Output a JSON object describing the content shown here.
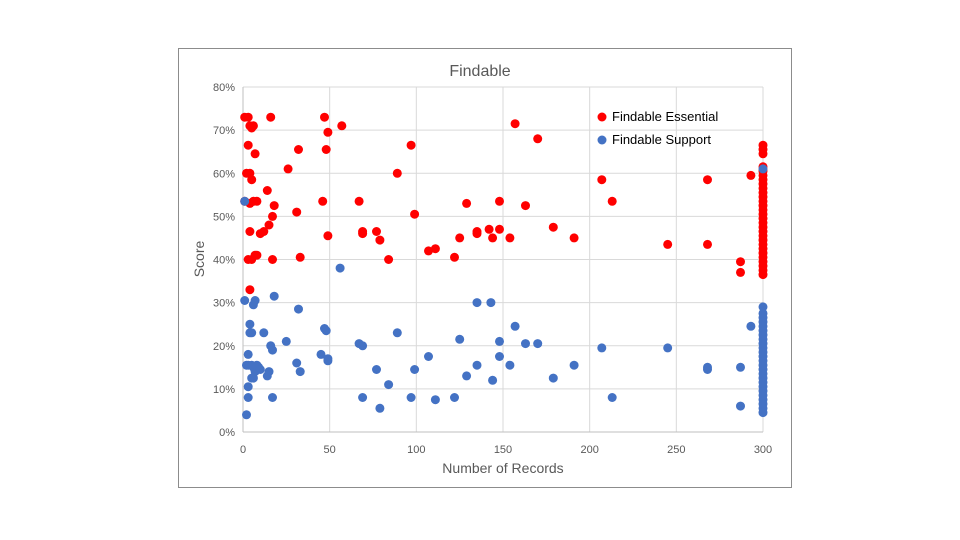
{
  "chart_data": {
    "type": "scatter",
    "title": "Findable",
    "xlabel": "Number of Records",
    "ylabel": "Score",
    "xlim": [
      0,
      300
    ],
    "ylim": [
      0,
      0.8
    ],
    "x_ticks": [
      "0",
      "50",
      "100",
      "150",
      "200",
      "250",
      "300"
    ],
    "y_ticks": [
      "0%",
      "10%",
      "20%",
      "30%",
      "40%",
      "50%",
      "60%",
      "70%",
      "80%"
    ],
    "grid": true,
    "legend_position": "top-right",
    "series": [
      {
        "name": "Findable Essential",
        "color": "#ff0000",
        "points": [
          [
            1,
            0.73
          ],
          [
            3,
            0.73
          ],
          [
            4,
            0.71
          ],
          [
            5,
            0.705
          ],
          [
            6,
            0.71
          ],
          [
            3,
            0.665
          ],
          [
            7,
            0.645
          ],
          [
            2,
            0.6
          ],
          [
            4,
            0.6
          ],
          [
            5,
            0.585
          ],
          [
            6,
            0.535
          ],
          [
            8,
            0.535
          ],
          [
            1,
            0.535
          ],
          [
            14,
            0.56
          ],
          [
            17,
            0.5
          ],
          [
            18,
            0.525
          ],
          [
            4,
            0.53
          ],
          [
            10,
            0.46
          ],
          [
            12,
            0.465
          ],
          [
            15,
            0.48
          ],
          [
            4,
            0.465
          ],
          [
            3,
            0.4
          ],
          [
            5,
            0.4
          ],
          [
            7,
            0.41
          ],
          [
            8,
            0.41
          ],
          [
            17,
            0.4
          ],
          [
            4,
            0.33
          ],
          [
            16,
            0.73
          ],
          [
            26,
            0.61
          ],
          [
            32,
            0.655
          ],
          [
            31,
            0.51
          ],
          [
            33,
            0.405
          ],
          [
            47,
            0.73
          ],
          [
            49,
            0.695
          ],
          [
            48,
            0.655
          ],
          [
            57,
            0.71
          ],
          [
            46,
            0.535
          ],
          [
            49,
            0.455
          ],
          [
            67,
            0.535
          ],
          [
            69,
            0.46
          ],
          [
            69,
            0.465
          ],
          [
            77,
            0.465
          ],
          [
            79,
            0.445
          ],
          [
            84,
            0.4
          ],
          [
            89,
            0.6
          ],
          [
            97,
            0.665
          ],
          [
            99,
            0.505
          ],
          [
            107,
            0.42
          ],
          [
            111,
            0.425
          ],
          [
            122,
            0.405
          ],
          [
            125,
            0.45
          ],
          [
            129,
            0.53
          ],
          [
            135,
            0.46
          ],
          [
            135,
            0.465
          ],
          [
            142,
            0.47
          ],
          [
            144,
            0.45
          ],
          [
            148,
            0.535
          ],
          [
            148,
            0.47
          ],
          [
            154,
            0.45
          ],
          [
            157,
            0.715
          ],
          [
            163,
            0.525
          ],
          [
            170,
            0.68
          ],
          [
            179,
            0.475
          ],
          [
            191,
            0.45
          ],
          [
            207,
            0.585
          ],
          [
            213,
            0.535
          ],
          [
            245,
            0.435
          ],
          [
            268,
            0.585
          ],
          [
            268,
            0.435
          ],
          [
            287,
            0.395
          ],
          [
            287,
            0.37
          ],
          [
            293,
            0.595
          ],
          [
            300,
            0.665
          ],
          [
            300,
            0.655
          ],
          [
            300,
            0.645
          ],
          [
            300,
            0.615
          ],
          [
            300,
            0.605
          ],
          [
            300,
            0.595
          ],
          [
            300,
            0.585
          ],
          [
            300,
            0.575
          ],
          [
            300,
            0.565
          ],
          [
            300,
            0.555
          ],
          [
            300,
            0.545
          ],
          [
            300,
            0.535
          ],
          [
            300,
            0.525
          ],
          [
            300,
            0.515
          ],
          [
            300,
            0.505
          ],
          [
            300,
            0.495
          ],
          [
            300,
            0.485
          ],
          [
            300,
            0.475
          ],
          [
            300,
            0.465
          ],
          [
            300,
            0.455
          ],
          [
            300,
            0.445
          ],
          [
            300,
            0.435
          ],
          [
            300,
            0.425
          ],
          [
            300,
            0.415
          ],
          [
            300,
            0.405
          ],
          [
            300,
            0.395
          ],
          [
            300,
            0.385
          ],
          [
            300,
            0.375
          ],
          [
            300,
            0.365
          ]
        ]
      },
      {
        "name": "Findable Support",
        "color": "#4472c4",
        "points": [
          [
            1,
            0.535
          ],
          [
            1,
            0.305
          ],
          [
            2,
            0.155
          ],
          [
            3,
            0.18
          ],
          [
            3,
            0.155
          ],
          [
            4,
            0.25
          ],
          [
            4,
            0.23
          ],
          [
            5,
            0.23
          ],
          [
            6,
            0.295
          ],
          [
            7,
            0.305
          ],
          [
            5,
            0.155
          ],
          [
            6,
            0.15
          ],
          [
            7,
            0.14
          ],
          [
            8,
            0.155
          ],
          [
            9,
            0.15
          ],
          [
            5,
            0.125
          ],
          [
            6,
            0.125
          ],
          [
            3,
            0.105
          ],
          [
            3,
            0.08
          ],
          [
            2,
            0.04
          ],
          [
            10,
            0.145
          ],
          [
            12,
            0.23
          ],
          [
            14,
            0.13
          ],
          [
            15,
            0.14
          ],
          [
            16,
            0.2
          ],
          [
            17,
            0.19
          ],
          [
            17,
            0.08
          ],
          [
            18,
            0.315
          ],
          [
            25,
            0.21
          ],
          [
            31,
            0.16
          ],
          [
            32,
            0.285
          ],
          [
            33,
            0.14
          ],
          [
            45,
            0.18
          ],
          [
            47,
            0.24
          ],
          [
            48,
            0.235
          ],
          [
            49,
            0.17
          ],
          [
            49,
            0.165
          ],
          [
            56,
            0.38
          ],
          [
            67,
            0.205
          ],
          [
            69,
            0.2
          ],
          [
            69,
            0.08
          ],
          [
            77,
            0.145
          ],
          [
            79,
            0.055
          ],
          [
            84,
            0.11
          ],
          [
            89,
            0.23
          ],
          [
            97,
            0.08
          ],
          [
            99,
            0.145
          ],
          [
            107,
            0.175
          ],
          [
            111,
            0.075
          ],
          [
            122,
            0.08
          ],
          [
            125,
            0.215
          ],
          [
            129,
            0.13
          ],
          [
            135,
            0.155
          ],
          [
            135,
            0.3
          ],
          [
            143,
            0.3
          ],
          [
            144,
            0.12
          ],
          [
            148,
            0.21
          ],
          [
            148,
            0.175
          ],
          [
            154,
            0.155
          ],
          [
            157,
            0.245
          ],
          [
            163,
            0.205
          ],
          [
            170,
            0.205
          ],
          [
            179,
            0.125
          ],
          [
            191,
            0.155
          ],
          [
            207,
            0.195
          ],
          [
            213,
            0.08
          ],
          [
            245,
            0.195
          ],
          [
            268,
            0.15
          ],
          [
            268,
            0.145
          ],
          [
            287,
            0.15
          ],
          [
            287,
            0.06
          ],
          [
            293,
            0.245
          ],
          [
            300,
            0.61
          ],
          [
            300,
            0.29
          ],
          [
            300,
            0.275
          ],
          [
            300,
            0.265
          ],
          [
            300,
            0.255
          ],
          [
            300,
            0.245
          ],
          [
            300,
            0.235
          ],
          [
            300,
            0.225
          ],
          [
            300,
            0.215
          ],
          [
            300,
            0.205
          ],
          [
            300,
            0.195
          ],
          [
            300,
            0.185
          ],
          [
            300,
            0.175
          ],
          [
            300,
            0.165
          ],
          [
            300,
            0.155
          ],
          [
            300,
            0.145
          ],
          [
            300,
            0.135
          ],
          [
            300,
            0.125
          ],
          [
            300,
            0.115
          ],
          [
            300,
            0.105
          ],
          [
            300,
            0.095
          ],
          [
            300,
            0.085
          ],
          [
            300,
            0.075
          ],
          [
            300,
            0.065
          ],
          [
            300,
            0.055
          ],
          [
            300,
            0.045
          ]
        ]
      }
    ]
  }
}
